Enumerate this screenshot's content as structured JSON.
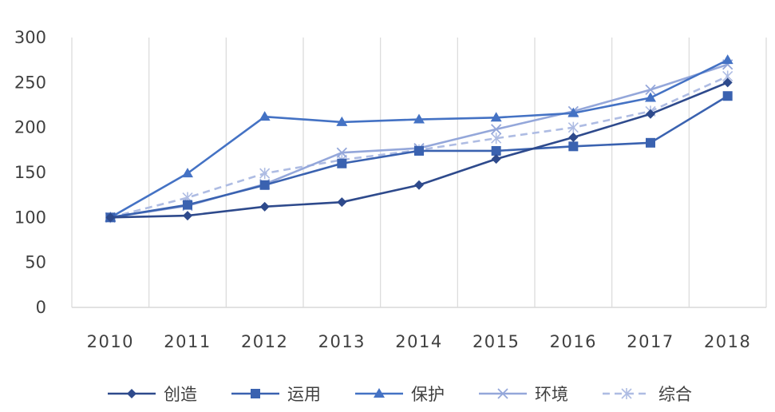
{
  "chart_data": {
    "type": "line",
    "title": "",
    "xlabel": "",
    "ylabel": "",
    "categories": [
      "2010",
      "2011",
      "2012",
      "2013",
      "2014",
      "2015",
      "2016",
      "2017",
      "2018"
    ],
    "ylim": [
      0,
      300
    ],
    "yticks": [
      "0",
      "50",
      "100",
      "150",
      "200",
      "250",
      "300"
    ],
    "grid": "vertical",
    "legend_position": "bottom",
    "series": [
      {
        "name": "创造",
        "values": [
          100,
          102,
          112,
          117,
          136,
          165,
          189,
          215,
          250
        ],
        "marker": "diamond",
        "color": "#2E4A8C",
        "dashed": false
      },
      {
        "name": "运用",
        "values": [
          100,
          114,
          136,
          160,
          174,
          174,
          179,
          183,
          235
        ],
        "marker": "square",
        "color": "#3A62B0",
        "dashed": false
      },
      {
        "name": "保护",
        "values": [
          100,
          149,
          212,
          206,
          209,
          211,
          216,
          233,
          275
        ],
        "marker": "triangle",
        "color": "#4472C4",
        "dashed": false
      },
      {
        "name": "环境",
        "values": [
          100,
          113,
          137,
          172,
          177,
          198,
          218,
          242,
          270
        ],
        "marker": "x",
        "color": "#94A7DA",
        "dashed": false
      },
      {
        "name": "综合",
        "values": [
          100,
          122,
          149,
          164,
          175,
          188,
          200,
          218,
          257
        ],
        "marker": "star",
        "color": "#AEBCE3",
        "dashed": true
      }
    ]
  }
}
